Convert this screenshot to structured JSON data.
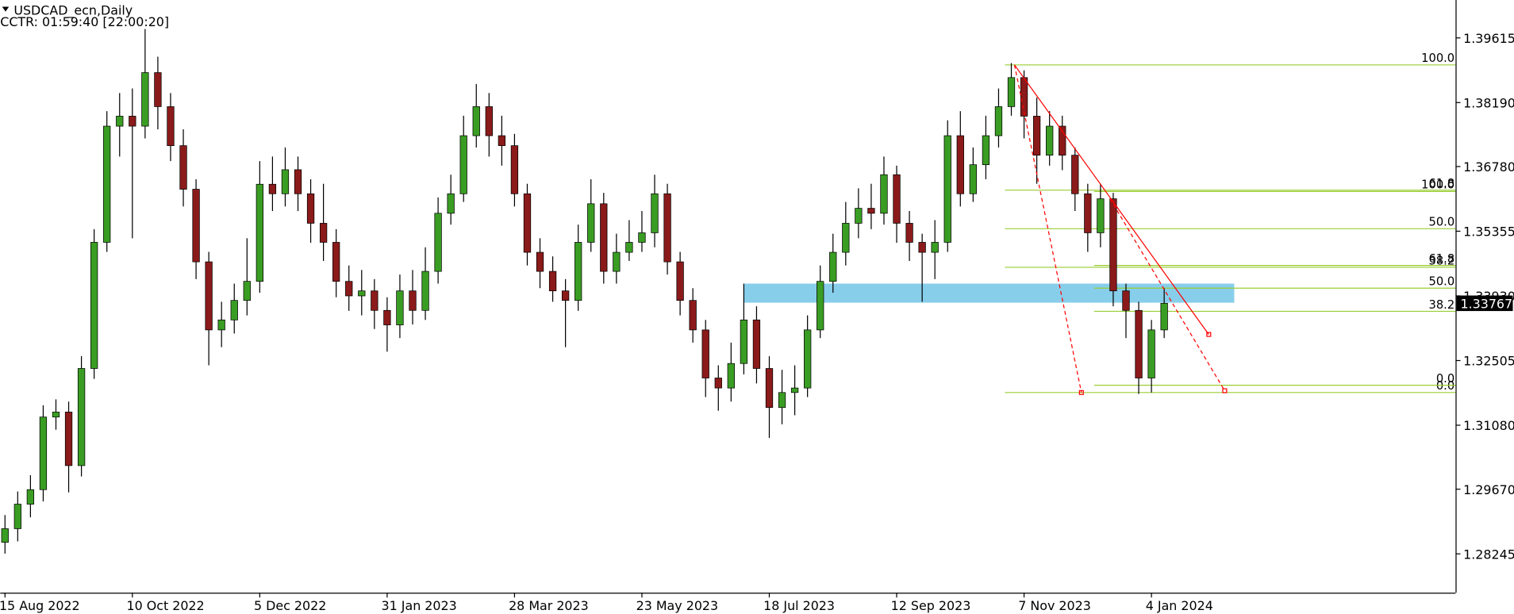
{
  "chart_data": {
    "type": "candlestick",
    "title": "USDCAD_ecn,Daily",
    "subtitle": "CCTR: 01:59:40 [22:00:20]",
    "up_color": "#3a9d23",
    "down_color": "#8b1a1a",
    "xlim": [
      -1.5,
      455.5
    ],
    "xticks": [
      {
        "value": 0,
        "label": "15 Aug 2022"
      },
      {
        "value": 40,
        "label": "10 Oct 2022"
      },
      {
        "value": 80,
        "label": "5 Dec 2022"
      },
      {
        "value": 120,
        "label": "31 Jan 2023"
      },
      {
        "value": 160,
        "label": "28 Mar 2023"
      },
      {
        "value": 200,
        "label": "23 May 2023"
      },
      {
        "value": 240,
        "label": "18 Jul 2023"
      },
      {
        "value": 280,
        "label": "12 Sep 2023"
      },
      {
        "value": 320,
        "label": "7 Nov 2023"
      },
      {
        "value": 360,
        "label": "4 Jan 2024"
      }
    ],
    "ylim": [
      1.2739,
      1.4045
    ],
    "yticks": [
      1.39615,
      {
        "value": 1.3819,
        "label": "1.38190"
      },
      {
        "value": 1.3678,
        "label": "1.36780"
      },
      1.35355,
      {
        "value": 1.3393,
        "label": "1.33930"
      },
      1.32505,
      {
        "value": 1.3108,
        "label": "1.31080"
      },
      {
        "value": 1.2967,
        "label": "1.29670"
      },
      1.28245
    ],
    "x": [
      0,
      4,
      8,
      12,
      16,
      20,
      24,
      28,
      32,
      36,
      40,
      44,
      48,
      52,
      56,
      60,
      64,
      68,
      72,
      76,
      80,
      84,
      88,
      92,
      96,
      100,
      104,
      108,
      112,
      116,
      120,
      124,
      128,
      132,
      136,
      140,
      144,
      148,
      152,
      156,
      160,
      164,
      168,
      172,
      176,
      180,
      184,
      188,
      192,
      196,
      200,
      204,
      208,
      212,
      216,
      220,
      224,
      228,
      232,
      236,
      240,
      244,
      248,
      252,
      256,
      260,
      264,
      268,
      272,
      276,
      280,
      284,
      288,
      292,
      296,
      300,
      304,
      308,
      312,
      316,
      320,
      324,
      328,
      332,
      336,
      340,
      344,
      348,
      352,
      356,
      360,
      364
    ],
    "open": [
      1.285,
      1.288,
      1.2934,
      1.2966,
      1.3126,
      1.3137,
      1.3019,
      1.3233,
      1.3511,
      1.3767,
      1.3789,
      1.3767,
      1.3885,
      1.381,
      1.3724,
      1.3628,
      1.3468,
      1.3318,
      1.334,
      1.3383,
      1.3425,
      1.3639,
      1.3618,
      1.3671,
      1.3618,
      1.3553,
      1.3511,
      1.3425,
      1.3393,
      1.3404,
      1.3361,
      1.3329,
      1.3404,
      1.3361,
      1.3447,
      1.3575,
      1.3618,
      1.3746,
      1.381,
      1.3746,
      1.3724,
      1.3618,
      1.3489,
      1.3447,
      1.3404,
      1.3383,
      1.3511,
      1.3596,
      1.3447,
      1.3489,
      1.3511,
      1.3532,
      1.3618,
      1.3468,
      1.3383,
      1.3318,
      1.3212,
      1.319,
      1.3244,
      1.334,
      1.3233,
      1.3147,
      1.318,
      1.319,
      1.3318,
      1.3425,
      1.3489,
      1.3553,
      1.3586,
      1.3575,
      1.366,
      1.3553,
      1.3511,
      1.3489,
      1.3511,
      1.3746,
      1.3618,
      1.3682,
      1.3746,
      1.381,
      1.3874,
      1.3789,
      1.3703,
      1.3767,
      1.3703,
      1.3618,
      1.3532,
      1.3607,
      1.3404,
      1.3361,
      1.3212,
      1.3318
    ],
    "high": [
      1.291,
      1.2962,
      1.2998,
      1.3152,
      1.3165,
      1.316,
      1.326,
      1.354,
      1.38,
      1.384,
      1.385,
      1.3981,
      1.392,
      1.384,
      1.376,
      1.365,
      1.349,
      1.338,
      1.342,
      1.352,
      1.369,
      1.37,
      1.372,
      1.37,
      1.365,
      1.364,
      1.354,
      1.346,
      1.345,
      1.343,
      1.339,
      1.344,
      1.345,
      1.35,
      1.361,
      1.366,
      1.379,
      1.386,
      1.384,
      1.379,
      1.375,
      1.364,
      1.352,
      1.348,
      1.343,
      1.355,
      1.365,
      1.362,
      1.353,
      1.356,
      1.358,
      1.366,
      1.364,
      1.349,
      1.341,
      1.334,
      1.324,
      1.329,
      1.342,
      1.337,
      1.326,
      1.323,
      1.324,
      1.335,
      1.346,
      1.353,
      1.36,
      1.363,
      1.364,
      1.37,
      1.368,
      1.358,
      1.353,
      1.356,
      1.378,
      1.38,
      1.372,
      1.379,
      1.385,
      1.3906,
      1.389,
      1.383,
      1.38,
      1.379,
      1.372,
      1.364,
      1.364,
      1.362,
      1.342,
      1.338,
      1.334,
      1.341
    ],
    "low": [
      1.2825,
      1.2852,
      1.2905,
      1.294,
      1.3098,
      1.296,
      1.2995,
      1.321,
      1.349,
      1.37,
      1.352,
      1.374,
      1.376,
      1.369,
      1.359,
      1.343,
      1.324,
      1.328,
      1.331,
      1.335,
      1.34,
      1.358,
      1.359,
      1.358,
      1.351,
      1.347,
      1.339,
      1.336,
      1.335,
      1.332,
      1.327,
      1.33,
      1.333,
      1.334,
      1.342,
      1.355,
      1.36,
      1.372,
      1.37,
      1.368,
      1.359,
      1.346,
      1.341,
      1.338,
      1.328,
      1.336,
      1.349,
      1.342,
      1.342,
      1.347,
      1.349,
      1.35,
      1.344,
      1.335,
      1.329,
      1.317,
      1.314,
      1.316,
      1.322,
      1.32,
      1.308,
      1.311,
      1.313,
      1.317,
      1.33,
      1.34,
      1.346,
      1.352,
      1.354,
      1.355,
      1.351,
      1.347,
      1.338,
      1.343,
      1.349,
      1.359,
      1.36,
      1.365,
      1.372,
      1.379,
      1.374,
      1.364,
      1.368,
      1.367,
      1.358,
      1.349,
      1.35,
      1.337,
      1.33,
      1.3177,
      1.318,
      1.33
    ],
    "close": [
      1.288,
      1.2934,
      1.2966,
      1.3126,
      1.3137,
      1.3019,
      1.3233,
      1.3511,
      1.3767,
      1.3789,
      1.3767,
      1.3885,
      1.381,
      1.3724,
      1.3628,
      1.3468,
      1.3318,
      1.334,
      1.3383,
      1.3425,
      1.3639,
      1.3618,
      1.3671,
      1.3618,
      1.3553,
      1.3511,
      1.3425,
      1.3393,
      1.3404,
      1.3361,
      1.3329,
      1.3404,
      1.3361,
      1.3447,
      1.3575,
      1.3618,
      1.3746,
      1.381,
      1.3746,
      1.3724,
      1.3618,
      1.3489,
      1.3447,
      1.3404,
      1.3383,
      1.3511,
      1.3596,
      1.3447,
      1.3489,
      1.3511,
      1.3532,
      1.3618,
      1.3468,
      1.3383,
      1.3318,
      1.3212,
      1.319,
      1.3244,
      1.334,
      1.3233,
      1.3147,
      1.318,
      1.319,
      1.3318,
      1.3425,
      1.3489,
      1.3553,
      1.3586,
      1.3575,
      1.366,
      1.3553,
      1.3511,
      1.3489,
      1.3511,
      1.3746,
      1.3618,
      1.3682,
      1.3746,
      1.381,
      1.3874,
      1.3789,
      1.3703,
      1.3767,
      1.3703,
      1.3618,
      1.3532,
      1.3607,
      1.3404,
      1.3361,
      1.3212,
      1.3318,
      1.33767
    ],
    "fib_color": "#9acd32",
    "fibonacci": [
      {
        "x_start": 314,
        "levels": [
          {
            "price": 1.3902,
            "label": "100.0"
          },
          {
            "price": 1.3626,
            "label": "61.8"
          },
          {
            "price": 1.3541,
            "label": "50.0"
          },
          {
            "price": 1.3456,
            "label": "38.2"
          },
          {
            "price": 1.318,
            "label": "0.0"
          }
        ]
      },
      {
        "x_start": 342,
        "levels": [
          {
            "price": 1.3623,
            "label": "100.0"
          },
          {
            "price": 1.346,
            "label": "61.8"
          },
          {
            "price": 1.341,
            "label": "50.0"
          },
          {
            "price": 1.3359,
            "label": "38.2"
          },
          {
            "price": 1.3196,
            "label": "0.0"
          }
        ]
      }
    ],
    "zone": {
      "x": [
        232,
        386
      ],
      "top": 1.342,
      "bottom": 1.3378,
      "color": "#87ceeb"
    },
    "trend_color": "#ff0000",
    "trendlines": [
      {
        "x": [
          317,
          378
        ],
        "y": [
          1.3902,
          1.3308
        ],
        "style": "solid"
      },
      {
        "x": [
          317,
          338
        ],
        "y": [
          1.3902,
          1.318
        ],
        "style": "dashed"
      },
      {
        "x": [
          347,
          383
        ],
        "y": [
          1.3607,
          1.3184
        ],
        "style": "dashed"
      }
    ]
  }
}
